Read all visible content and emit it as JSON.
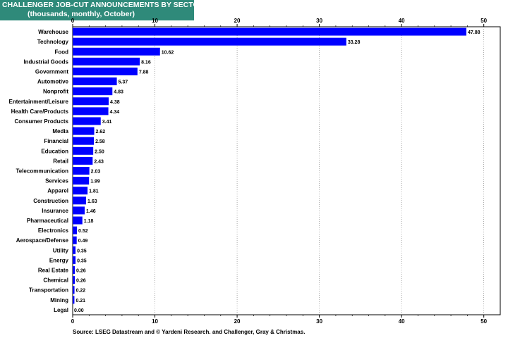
{
  "header": {
    "title": "CHALLENGER JOB-CUT ANNOUNCEMENTS BY SECTORS",
    "subtitle": "(thousands, monthly, October)"
  },
  "footer": {
    "source": "Source: LSEG Datastream and © Yardeni Research. and Challenger, Gray & Christmas."
  },
  "colors": {
    "bar": "#0000ff",
    "title_bg": "#2f8a7a"
  },
  "chart_data": {
    "type": "bar",
    "orientation": "horizontal",
    "title": "CHALLENGER JOB-CUT ANNOUNCEMENTS BY SECTORS",
    "subtitle": "(thousands, monthly, October)",
    "xlim": [
      0,
      52
    ],
    "ticks": [
      0,
      10,
      20,
      30,
      40,
      50
    ],
    "categories": [
      "Warehouse",
      "Technology",
      "Food",
      "Industrial Goods",
      "Government",
      "Automotive",
      "Nonprofit",
      "Entertainment/Leisure",
      "Health Care/Products",
      "Consumer Products",
      "Media",
      "Financial",
      "Education",
      "Retail",
      "Telecommunication",
      "Services",
      "Apparel",
      "Construction",
      "Insurance",
      "Pharmaceutical",
      "Electronics",
      "Aerospace/Defense",
      "Utility",
      "Energy",
      "Real Estate",
      "Chemical",
      "Transportation",
      "Mining",
      "Legal"
    ],
    "values": [
      47.88,
      33.28,
      10.62,
      8.16,
      7.88,
      5.37,
      4.83,
      4.38,
      4.34,
      3.41,
      2.62,
      2.58,
      2.5,
      2.43,
      2.03,
      1.99,
      1.81,
      1.63,
      1.46,
      1.18,
      0.52,
      0.49,
      0.35,
      0.35,
      0.26,
      0.26,
      0.22,
      0.21,
      0.0
    ],
    "value_labels": [
      "47.88",
      "33.28",
      "10.62",
      "8.16",
      "7.88",
      "5.37",
      "4.83",
      "4.38",
      "4.34",
      "3.41",
      "2.62",
      "2.58",
      "2.50",
      "2.43",
      "2.03",
      "1.99",
      "1.81",
      "1.63",
      "1.46",
      "1.18",
      "0.52",
      "0.49",
      "0.35",
      "0.35",
      "0.26",
      "0.26",
      "0.22",
      "0.21",
      "0.00"
    ],
    "grid": true
  }
}
